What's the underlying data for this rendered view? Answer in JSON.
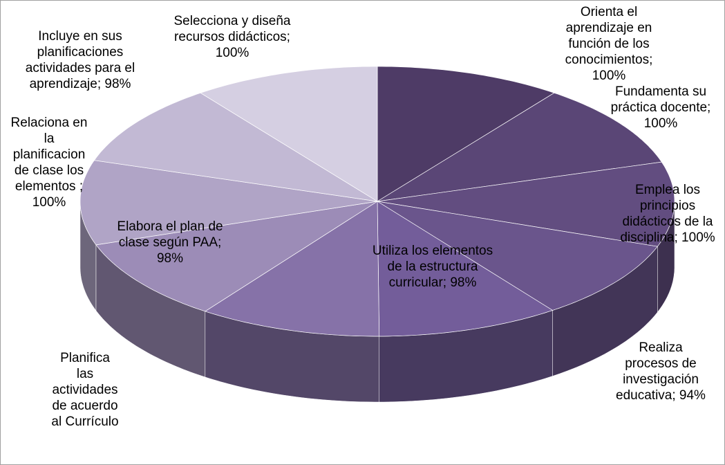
{
  "chart_data": {
    "type": "pie3d",
    "labels": [
      "Orienta el aprendizaje en función de los conocimientos; 100%",
      "Fundamenta su práctica docente; 100%",
      "Emplea los principios didácticos de la disciplina; 100%",
      "Realiza procesos de investigación educativa; 94%",
      "Utiliza los elementos de la estructura curricular; 98%",
      "Planifica las actividades de acuerdo al Currículo",
      "Elabora el plan de clase según PAA; 98%",
      "Relaciona en la planificacion de clase los elementos ; 100%",
      "Incluye en sus planificaciones actividades para el aprendizaje; 98%",
      "Selecciona y diseña recursos didácticos; 100%"
    ],
    "values": [
      100,
      100,
      100,
      94,
      98,
      98,
      98,
      100,
      98,
      100
    ],
    "colors": [
      "#4e3b66",
      "#5a4676",
      "#624d80",
      "#6a558c",
      "#735d9a",
      "#8672a8",
      "#9c8cb7",
      "#b0a4c6",
      "#c2b9d4",
      "#d5cfe2"
    ]
  }
}
